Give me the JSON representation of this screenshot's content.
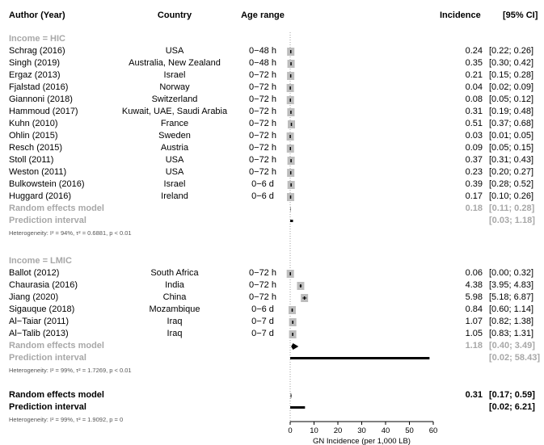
{
  "header": {
    "study": "Author (Year)",
    "country": "Country",
    "age": "Age range",
    "incidence": "Incidence",
    "ci": "[95% CI]"
  },
  "chart_data": {
    "type": "forest",
    "xlabel": "GN Incidence (per 1,000 LB)",
    "xlim": [
      0,
      60
    ],
    "xticks": [
      0,
      10,
      20,
      30,
      40,
      50,
      60
    ],
    "groups": [
      {
        "label": "Income = HIC",
        "studies": [
          {
            "study": "Schrag (2016)",
            "country": "USA",
            "age": "0−48 h",
            "est": 0.24,
            "lo": 0.22,
            "hi": 0.26,
            "est_text": "0.24",
            "ci_text": "[0.22; 0.26]"
          },
          {
            "study": "Singh (2019)",
            "country": "Australia, New Zealand",
            "age": "0−48 h",
            "est": 0.35,
            "lo": 0.3,
            "hi": 0.42,
            "est_text": "0.35",
            "ci_text": "[0.30; 0.42]"
          },
          {
            "study": "Ergaz (2013)",
            "country": "Israel",
            "age": "0−72 h",
            "est": 0.21,
            "lo": 0.15,
            "hi": 0.28,
            "est_text": "0.21",
            "ci_text": "[0.15; 0.28]"
          },
          {
            "study": "Fjalstad (2016)",
            "country": "Norway",
            "age": "0−72 h",
            "est": 0.04,
            "lo": 0.02,
            "hi": 0.09,
            "est_text": "0.04",
            "ci_text": "[0.02; 0.09]"
          },
          {
            "study": "Giannoni (2018)",
            "country": "Switzerland",
            "age": "0−72 h",
            "est": 0.08,
            "lo": 0.05,
            "hi": 0.12,
            "est_text": "0.08",
            "ci_text": "[0.05; 0.12]"
          },
          {
            "study": "Hammoud (2017)",
            "country": "Kuwait, UAE, Saudi Arabia",
            "age": "0−72 h",
            "est": 0.31,
            "lo": 0.19,
            "hi": 0.48,
            "est_text": "0.31",
            "ci_text": "[0.19; 0.48]"
          },
          {
            "study": "Kuhn (2010)",
            "country": "France",
            "age": "0−72 h",
            "est": 0.51,
            "lo": 0.37,
            "hi": 0.68,
            "est_text": "0.51",
            "ci_text": "[0.37; 0.68]"
          },
          {
            "study": "Ohlin (2015)",
            "country": "Sweden",
            "age": "0−72 h",
            "est": 0.03,
            "lo": 0.01,
            "hi": 0.05,
            "est_text": "0.03",
            "ci_text": "[0.01; 0.05]"
          },
          {
            "study": "Resch (2015)",
            "country": "Austria",
            "age": "0−72 h",
            "est": 0.09,
            "lo": 0.05,
            "hi": 0.15,
            "est_text": "0.09",
            "ci_text": "[0.05; 0.15]"
          },
          {
            "study": "Stoll (2011)",
            "country": "USA",
            "age": "0−72 h",
            "est": 0.37,
            "lo": 0.31,
            "hi": 0.43,
            "est_text": "0.37",
            "ci_text": "[0.31; 0.43]"
          },
          {
            "study": "Weston (2011)",
            "country": "USA",
            "age": "0−72 h",
            "est": 0.23,
            "lo": 0.2,
            "hi": 0.27,
            "est_text": "0.23",
            "ci_text": "[0.20; 0.27]"
          },
          {
            "study": "Bulkowstein (2016)",
            "country": "Israel",
            "age": "0−6 d",
            "est": 0.39,
            "lo": 0.28,
            "hi": 0.52,
            "est_text": "0.39",
            "ci_text": "[0.28; 0.52]"
          },
          {
            "study": "Huggard (2016)",
            "country": "Ireland",
            "age": "0−6 d",
            "est": 0.17,
            "lo": 0.1,
            "hi": 0.26,
            "est_text": "0.17",
            "ci_text": "[0.10; 0.26]"
          }
        ],
        "random": {
          "label": "Random effects model",
          "est": 0.18,
          "lo": 0.11,
          "hi": 0.28,
          "est_text": "0.18",
          "ci_text": "[0.11; 0.28]"
        },
        "prediction": {
          "label": "Prediction interval",
          "lo": 0.03,
          "hi": 1.18,
          "ci_text": "[0.03; 1.18]"
        },
        "heterogeneity": "Heterogeneity: I² = 94%, τ² = 0.6881, p < 0.01"
      },
      {
        "label": "Income = LMIC",
        "studies": [
          {
            "study": "Ballot (2012)",
            "country": "South Africa",
            "age": "0−72 h",
            "est": 0.06,
            "lo": 0.0,
            "hi": 0.32,
            "est_text": "0.06",
            "ci_text": "[0.00; 0.32]"
          },
          {
            "study": "Chaurasia (2016)",
            "country": "India",
            "age": "0−72 h",
            "est": 4.38,
            "lo": 3.95,
            "hi": 4.83,
            "est_text": "4.38",
            "ci_text": "[3.95; 4.83]"
          },
          {
            "study": "Jiang (2020)",
            "country": "China",
            "age": "0−72 h",
            "est": 5.98,
            "lo": 5.18,
            "hi": 6.87,
            "est_text": "5.98",
            "ci_text": "[5.18; 6.87]"
          },
          {
            "study": "Sigauque (2018)",
            "country": "Mozambique",
            "age": "0−6 d",
            "est": 0.84,
            "lo": 0.6,
            "hi": 1.14,
            "est_text": "0.84",
            "ci_text": "[0.60; 1.14]"
          },
          {
            "study": "Al−Taiar (2011)",
            "country": "Iraq",
            "age": "0−7 d",
            "est": 1.07,
            "lo": 0.82,
            "hi": 1.38,
            "est_text": "1.07",
            "ci_text": "[0.82; 1.38]"
          },
          {
            "study": "Al−Talib (2013)",
            "country": "Iraq",
            "age": "0−7 d",
            "est": 1.05,
            "lo": 0.83,
            "hi": 1.31,
            "est_text": "1.05",
            "ci_text": "[0.83; 1.31]"
          }
        ],
        "random": {
          "label": "Random effects model",
          "est": 1.18,
          "lo": 0.4,
          "hi": 3.49,
          "est_text": "1.18",
          "ci_text": "[0.40; 3.49]"
        },
        "prediction": {
          "label": "Prediction interval",
          "lo": 0.02,
          "hi": 58.43,
          "ci_text": "[0.02; 58.43]"
        },
        "heterogeneity": "Heterogeneity: I² = 99%, τ² = 1.7269, p < 0.01"
      }
    ],
    "overall": {
      "random": {
        "label": "Random effects model",
        "est": 0.31,
        "lo": 0.17,
        "hi": 0.59,
        "est_text": "0.31",
        "ci_text": "[0.17; 0.59]"
      },
      "prediction": {
        "label": "Prediction interval",
        "lo": 0.02,
        "hi": 6.21,
        "ci_text": "[0.02; 6.21]"
      },
      "heterogeneity": "Heterogeneity: I² = 99%, τ² = 1.9092, p = 0"
    }
  }
}
